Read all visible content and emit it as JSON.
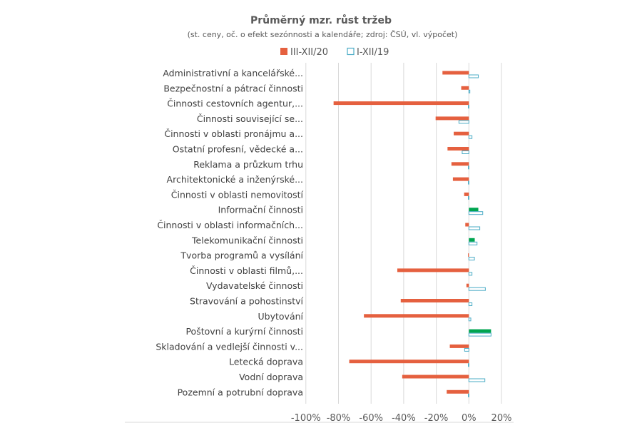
{
  "chart_data": {
    "type": "bar",
    "orientation": "horizontal",
    "title": "Průměrný mzr. růst tržeb",
    "subtitle": "(st. ceny, oč. o efekt sezónnosti a kalendáře; zdroj: ČSÚ, vl. výpočet)",
    "legend_position": "top",
    "xlim": [
      -100,
      20
    ],
    "x_ticks": [
      "-100%",
      "-80%",
      "-60%",
      "-40%",
      "-20%",
      "0%",
      "20%"
    ],
    "x_tick_values": [
      -100,
      -80,
      -60,
      -40,
      -20,
      0,
      20
    ],
    "grid": true,
    "unit": "%",
    "categories": [
      "Administrativní a kancelářské...",
      "Bezpečnostní a pátrací činnosti",
      "Činnosti cestovních agentur,...",
      "Činnosti související se...",
      "Činnosti  v oblasti pronájmu a...",
      "Ostatní profesní, vědecké a...",
      "Reklama a průzkum trhu",
      "Architektonické a inženýrské...",
      "Činnosti v oblasti nemovitostí",
      "Informační činnosti",
      "Činnosti v oblasti informačních...",
      "Telekomunikační činnosti",
      "Tvorba programů a vysílání",
      "Činnosti v oblasti filmů,...",
      "Vydavatelské činnosti",
      "Stravování a pohostinství",
      "Ubytování",
      "Poštovní a kurýrní činnosti",
      "Skladování a vedlejší činnosti v...",
      "Letecká doprava",
      "Vodní doprava",
      "Pozemní a potrubní doprava"
    ],
    "series": [
      {
        "name": "III-XII/20",
        "style": "filled",
        "color": "#E5603F",
        "positive_color": "#00A550",
        "values": [
          -16.2,
          -4.7,
          -83,
          -20.4,
          -9.3,
          -13.1,
          -10.7,
          -9.8,
          -2.9,
          5.8,
          -2.2,
          3.6,
          -0.5,
          -43.9,
          -1.5,
          -41.8,
          -64.4,
          13.6,
          -11.7,
          -73.4,
          -40.9,
          -13.6
        ]
      },
      {
        "name": "I-XII/19",
        "style": "outline",
        "color": "#4BACC6",
        "values": [
          5.8,
          0.6,
          -0.3,
          -6.1,
          1.9,
          -4.1,
          -0.3,
          -0.3,
          -0.3,
          8.5,
          6.7,
          5.0,
          3.4,
          1.9,
          10.1,
          1.9,
          1.2,
          13.6,
          -2.6,
          -0.3,
          9.8,
          -0.3
        ]
      }
    ]
  }
}
